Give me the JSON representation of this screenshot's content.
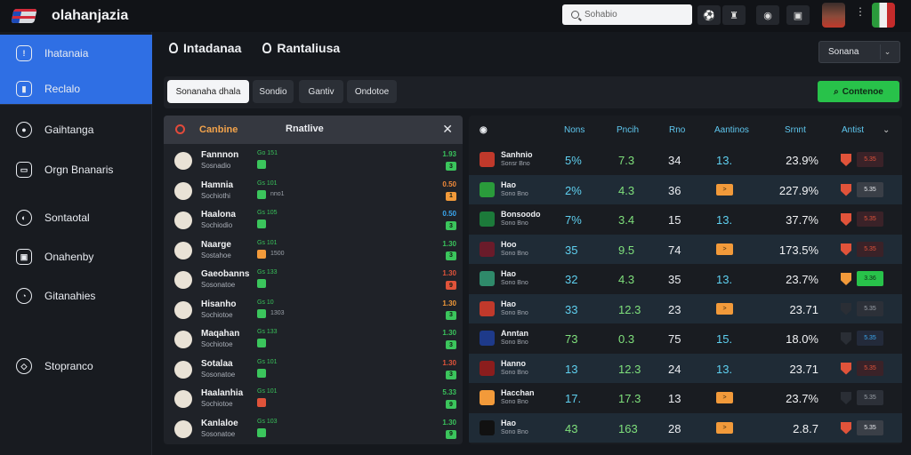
{
  "app": {
    "title": "olahanjazia",
    "brand_colors": {
      "accent": "#2f6fe4",
      "cta": "#28c24a"
    }
  },
  "search": {
    "placeholder": "Sohabio"
  },
  "sidebar": {
    "items": [
      {
        "label": "Ihatanaia",
        "icon": "shield-icon",
        "icon_glyph": "!"
      },
      {
        "label": "Reclalo",
        "icon": "flag-icon",
        "icon_glyph": "▮"
      },
      {
        "label": "Gaihtanga",
        "icon": "soccer-ball-icon",
        "icon_glyph": "●"
      },
      {
        "label": "Orgn Bnanaris",
        "icon": "briefcase-icon",
        "icon_glyph": "▭"
      },
      {
        "label": "Sontaotal",
        "icon": "basketball-icon",
        "icon_glyph": "◐"
      },
      {
        "label": "Onahenby",
        "icon": "calendar-icon",
        "icon_glyph": "▣"
      },
      {
        "label": "Gitanahies",
        "icon": "helmet-icon",
        "icon_glyph": "◔"
      },
      {
        "label": "Stopranco",
        "icon": "rugby-ball-icon",
        "icon_glyph": "◇"
      }
    ]
  },
  "header": {
    "crumb1": "Intadanaa",
    "crumb2": "Rantaliusa",
    "select_value": "Sonana"
  },
  "tabs": [
    {
      "label": "Sonanaha dhala"
    },
    {
      "label": "Sondio"
    },
    {
      "label": "Gantiv"
    },
    {
      "label": "Ondotoe"
    }
  ],
  "cta": {
    "label": "Contenoe"
  },
  "left_panel": {
    "title": "Canbine",
    "title2": "Rnatlive",
    "rows": [
      {
        "name": "Fannnon",
        "sub": "Sosnadio",
        "code": "Go 151",
        "chip_color": "#3bc55c",
        "meta": "",
        "odd1": "1.93",
        "odd1_color": "#39c25b",
        "odd2": "3",
        "odd2_color": "#3bc55c"
      },
      {
        "name": "Hamnia",
        "sub": "Sochiothi",
        "code": "Gs 101",
        "chip_color": "#3bc55c",
        "meta": "nno1",
        "odd1": "0.50",
        "odd1_color": "#f28a3a",
        "odd2": "1",
        "odd2_color": "#f29a3a"
      },
      {
        "name": "Haalona",
        "sub": "Sochiodio",
        "code": "Gs 105",
        "chip_color": "#3bc55c",
        "meta": "",
        "odd1": "0.50",
        "odd1_color": "#3aa7f0",
        "odd2": "3",
        "odd2_color": "#3bc55c"
      },
      {
        "name": "Naarge",
        "sub": "Sostahoe",
        "code": "Gs 101",
        "chip_color": "#f29a3a",
        "meta": "1500",
        "odd1": "1.30",
        "odd1_color": "#39c25b",
        "odd2": "3",
        "odd2_color": "#3bc55c"
      },
      {
        "name": "Gaeobanns",
        "sub": "Sosonatoe",
        "code": "Gs 133",
        "chip_color": "#3bc55c",
        "meta": "",
        "odd1": "1.30",
        "odd1_color": "#e0533a",
        "odd2": "9",
        "odd2_color": "#e0533a"
      },
      {
        "name": "Hisanho",
        "sub": "Sochiotoe",
        "code": "Gs 10",
        "chip_color": "#3bc55c",
        "meta": "1303",
        "odd1": "1.30",
        "odd1_color": "#f29a3a",
        "odd2": "3",
        "odd2_color": "#3bc55c"
      },
      {
        "name": "Maqahan",
        "sub": "Sochiotoe",
        "code": "Gs 133",
        "chip_color": "#3bc55c",
        "meta": "",
        "odd1": "1.30",
        "odd1_color": "#39c25b",
        "odd2": "3",
        "odd2_color": "#3bc55c"
      },
      {
        "name": "Sotalaa",
        "sub": "Sosonatoe",
        "code": "Gs 101",
        "chip_color": "#3bc55c",
        "meta": "",
        "odd1": "1.30",
        "odd1_color": "#e0533a",
        "odd2": "3",
        "odd2_color": "#3bc55c"
      },
      {
        "name": "Haalanhia",
        "sub": "Sochiotoe",
        "code": "Gs 101",
        "chip_color": "#e0533a",
        "meta": "",
        "odd1": "5.33",
        "odd1_color": "#39c25b",
        "odd2": "9",
        "odd2_color": "#3bc55c"
      },
      {
        "name": "Kanlaloe",
        "sub": "Sosonatoe",
        "code": "Gs 103",
        "chip_color": "#3bc55c",
        "meta": "",
        "odd1": "1.30",
        "odd1_color": "#39c25b",
        "odd2": "9",
        "odd2_color": "#3bc55c"
      }
    ]
  },
  "right_table": {
    "headers": [
      "Nons",
      "Pncih",
      "Rno",
      "Aantinos",
      "Srnnt",
      "Antist"
    ],
    "rows": [
      {
        "name": "Sanhnio",
        "sub": "Sonsr Bno",
        "c1": "5%",
        "c1_color": "#5fd0f0",
        "c2": "7.3",
        "c3": "34",
        "c4": "13.",
        "c4_chip": false,
        "c5": "23.9%",
        "flag_color": "#e0533a",
        "box_label": "5.35",
        "box_bg": "#3a2228",
        "box_fg": "#e0533a"
      },
      {
        "name": "Hao",
        "sub": "Sono Bno",
        "c1": "2%",
        "c1_color": "#5fd0f0",
        "c2": "4.3",
        "c3": "36",
        "c4": "",
        "c4_chip": true,
        "c5": "227.9%",
        "flag_color": "#e0533a",
        "box_label": "5.35",
        "box_bg": "#3a3f47",
        "box_fg": "#e6e8ec"
      },
      {
        "name": "Bonsoodo",
        "sub": "Sono Bno",
        "c1": "7%",
        "c1_color": "#5fd0f0",
        "c2": "3.4",
        "c3": "15",
        "c4": "13.",
        "c4_chip": false,
        "c5": "37.7%",
        "flag_color": "#e0533a",
        "box_label": "5.35",
        "box_bg": "#3a2228",
        "box_fg": "#e0533a"
      },
      {
        "name": "Hoo",
        "sub": "Sono Bno",
        "c1": "35",
        "c1_color": "#5fd0f0",
        "c2": "9.5",
        "c3": "74",
        "c4": "",
        "c4_chip": true,
        "c5": "173.5%",
        "flag_color": "#e0533a",
        "box_label": "5.35",
        "box_bg": "#3a2228",
        "box_fg": "#e0533a"
      },
      {
        "name": "Hao",
        "sub": "Sono Bno",
        "c1": "32",
        "c1_color": "#5fd0f0",
        "c2": "4.3",
        "c3": "35",
        "c4": "13.",
        "c4_chip": false,
        "c5": "23.7%",
        "flag_color": "#f29a3a",
        "box_label": "3.36",
        "box_bg": "#28c24a",
        "box_fg": "#0f2a16"
      },
      {
        "name": "Hao",
        "sub": "Sono Bno",
        "c1": "33",
        "c1_color": "#5fd0f0",
        "c2": "12.3",
        "c3": "23",
        "c4": "",
        "c4_chip": true,
        "c5": "23.71",
        "flag_color": "#2a2e35",
        "box_label": "5.35",
        "box_bg": "#2c3038",
        "box_fg": "#9aa0a8"
      },
      {
        "name": "Anntan",
        "sub": "Sono Bno",
        "c1": "73",
        "c1_color": "#7fe07c",
        "c2": "0.3",
        "c3": "75",
        "c4": "15.",
        "c4_chip": false,
        "c5": "18.0%",
        "flag_color": "#2a2e35",
        "box_label": "5.35",
        "box_bg": "#232a3a",
        "box_fg": "#3aa7f0"
      },
      {
        "name": "Hanno",
        "sub": "Sono Bno",
        "c1": "13",
        "c1_color": "#5fd0f0",
        "c2": "12.3",
        "c3": "24",
        "c4": "13.",
        "c4_chip": false,
        "c5": "23.71",
        "flag_color": "#e0533a",
        "box_label": "5.35",
        "box_bg": "#3a2228",
        "box_fg": "#e0533a"
      },
      {
        "name": "Hacchan",
        "sub": "Sono Bno",
        "c1": "17.",
        "c1_color": "#5fd0f0",
        "c2": "17.3",
        "c3": "13",
        "c4": "",
        "c4_chip": true,
        "c5": "23.7%",
        "flag_color": "#2a2e35",
        "box_label": "5.35",
        "box_bg": "#2c3038",
        "box_fg": "#9aa0a8"
      },
      {
        "name": "Hao",
        "sub": "Sono Bno",
        "c1": "43",
        "c1_color": "#7fe07c",
        "c2": "163",
        "c3": "28",
        "c4": "",
        "c4_chip": true,
        "c5": "2.8.7",
        "flag_color": "#e0533a",
        "box_label": "5.35",
        "box_bg": "#3a3f47",
        "box_fg": "#e6e8ec"
      }
    ]
  }
}
